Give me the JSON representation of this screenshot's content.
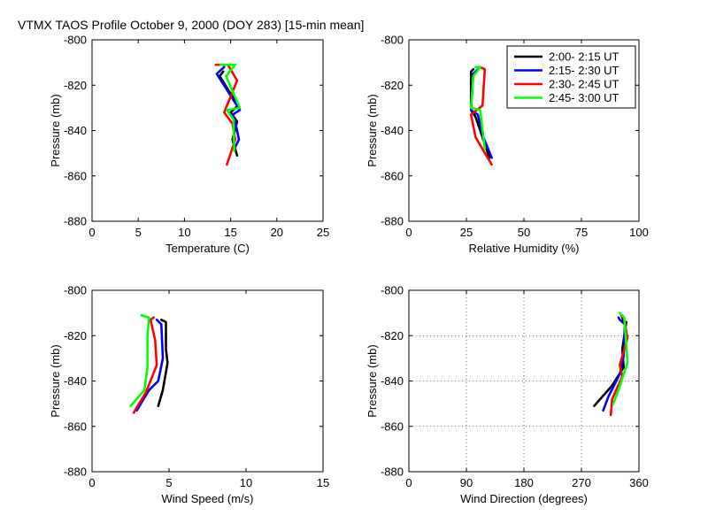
{
  "title": "VTMX TAOS Profile   October 9, 2000 (DOY 283) [15-min mean]",
  "colors": [
    "#000000",
    "#0000ff",
    "#ff0000",
    "#00ff00"
  ],
  "legend": [
    "2:00- 2:15 UT",
    "2:15- 2:30 UT",
    "2:30- 2:45 UT",
    "2:45- 3:00 UT"
  ],
  "chart_data": [
    {
      "type": "line",
      "id": "temperature",
      "xlabel": "Temperature (C)",
      "ylabel": "Pressure (mb)",
      "xlim": [
        0,
        25
      ],
      "ylim": [
        -880,
        -800
      ],
      "xticks": [
        0,
        5,
        10,
        15,
        20,
        25
      ],
      "yticks": [
        -880,
        -860,
        -840,
        -820,
        -800
      ],
      "grid": false,
      "series": [
        {
          "name": "2:00- 2:15 UT",
          "points": [
            [
              14.2,
              -814
            ],
            [
              13.8,
              -816
            ],
            [
              15.8,
              -829
            ],
            [
              15.0,
              -832
            ],
            [
              15.7,
              -836
            ],
            [
              15.2,
              -844
            ],
            [
              15.7,
              -851
            ]
          ]
        },
        {
          "name": "2:15- 2:30 UT",
          "points": [
            [
              14.3,
              -812
            ],
            [
              13.5,
              -815
            ],
            [
              16.0,
              -831
            ],
            [
              15.2,
              -833
            ],
            [
              15.5,
              -836
            ],
            [
              15.9,
              -844
            ],
            [
              15.4,
              -848
            ]
          ]
        },
        {
          "name": "2:30- 2:45 UT",
          "points": [
            [
              13.4,
              -811
            ],
            [
              14.7,
              -811
            ],
            [
              15.7,
              -818
            ],
            [
              14.3,
              -832
            ],
            [
              15.2,
              -837
            ],
            [
              15.5,
              -844
            ],
            [
              14.6,
              -855
            ]
          ]
        },
        {
          "name": "2:45- 3:00 UT",
          "points": [
            [
              13.9,
              -811
            ],
            [
              15.5,
              -811
            ],
            [
              14.5,
              -816
            ],
            [
              16.0,
              -830
            ],
            [
              14.6,
              -831
            ],
            [
              15.3,
              -835
            ],
            [
              15.4,
              -849
            ]
          ]
        }
      ]
    },
    {
      "type": "line",
      "id": "humidity",
      "xlabel": "Relative Humidity (%)",
      "ylabel": "Pressure (mb)",
      "xlim": [
        0,
        100
      ],
      "ylim": [
        -880,
        -800
      ],
      "xticks": [
        0,
        25,
        50,
        75,
        100
      ],
      "yticks": [
        -880,
        -860,
        -840,
        -820,
        -800
      ],
      "grid": false,
      "series": [
        {
          "name": "2:00- 2:15 UT",
          "points": [
            [
              28,
              -813
            ],
            [
              27,
              -814
            ],
            [
              27,
              -831
            ],
            [
              29,
              -834
            ],
            [
              31,
              -840
            ],
            [
              35,
              -852
            ]
          ]
        },
        {
          "name": "2:15- 2:30 UT",
          "points": [
            [
              30,
              -813
            ],
            [
              28,
              -815
            ],
            [
              27,
              -831
            ],
            [
              30,
              -833
            ],
            [
              32,
              -842
            ],
            [
              36,
              -852
            ]
          ]
        },
        {
          "name": "2:30- 2:45 UT",
          "points": [
            [
              31,
              -812
            ],
            [
              33,
              -813
            ],
            [
              32,
              -829
            ],
            [
              27,
              -833
            ],
            [
              29,
              -843
            ],
            [
              36,
              -855
            ]
          ]
        },
        {
          "name": "2:45- 3:00 UT",
          "points": [
            [
              29,
              -812
            ],
            [
              31,
              -812
            ],
            [
              28,
              -816
            ],
            [
              27,
              -830
            ],
            [
              31,
              -831
            ],
            [
              33,
              -848
            ]
          ]
        }
      ]
    },
    {
      "type": "line",
      "id": "wind_speed",
      "xlabel": "Wind Speed (m/s)",
      "ylabel": "Pressure (mb)",
      "xlim": [
        0,
        15
      ],
      "ylim": [
        -880,
        -800
      ],
      "xticks": [
        0,
        5,
        10,
        15
      ],
      "yticks": [
        -880,
        -860,
        -840,
        -820,
        -800
      ],
      "grid": false,
      "series": [
        {
          "name": "2:00- 2:15 UT",
          "points": [
            [
              4.5,
              -813
            ],
            [
              4.8,
              -814
            ],
            [
              4.8,
              -826
            ],
            [
              4.9,
              -832
            ],
            [
              4.6,
              -844
            ],
            [
              4.3,
              -851
            ]
          ]
        },
        {
          "name": "2:15- 2:30 UT",
          "points": [
            [
              4.2,
              -813
            ],
            [
              4.5,
              -815
            ],
            [
              4.6,
              -830
            ],
            [
              4.3,
              -840
            ],
            [
              3.7,
              -844
            ],
            [
              2.9,
              -853
            ]
          ]
        },
        {
          "name": "2:30- 2:45 UT",
          "points": [
            [
              4.0,
              -812
            ],
            [
              3.8,
              -813
            ],
            [
              4.1,
              -822
            ],
            [
              4.2,
              -833
            ],
            [
              3.5,
              -845
            ],
            [
              2.7,
              -854
            ]
          ]
        },
        {
          "name": "2:45- 3:00 UT",
          "points": [
            [
              3.2,
              -811
            ],
            [
              3.7,
              -812
            ],
            [
              3.6,
              -820
            ],
            [
              3.6,
              -834
            ],
            [
              3.4,
              -844
            ],
            [
              2.5,
              -851
            ]
          ]
        }
      ]
    },
    {
      "type": "line",
      "id": "wind_direction",
      "xlabel": "Wind Direction (degrees)",
      "ylabel": "Pressure (mb)",
      "xlim": [
        0,
        360
      ],
      "ylim": [
        -880,
        -800
      ],
      "xticks": [
        0,
        90,
        180,
        270,
        360
      ],
      "yticks": [
        -880,
        -860,
        -840,
        -820,
        -800
      ],
      "grid": true,
      "series": [
        {
          "name": "2:00- 2:15 UT",
          "points": [
            [
              333,
              -811
            ],
            [
              336,
              -814
            ],
            [
              340,
              -814
            ],
            [
              334,
              -826
            ],
            [
              336,
              -834
            ],
            [
              318,
              -842
            ],
            [
              290,
              -851
            ]
          ]
        },
        {
          "name": "2:15- 2:30 UT",
          "points": [
            [
              328,
              -812
            ],
            [
              330,
              -813
            ],
            [
              338,
              -815
            ],
            [
              336,
              -829
            ],
            [
              330,
              -837
            ],
            [
              312,
              -847
            ],
            [
              304,
              -853
            ]
          ]
        },
        {
          "name": "2:30- 2:45 UT",
          "points": [
            [
              332,
              -811
            ],
            [
              336,
              -812
            ],
            [
              342,
              -821
            ],
            [
              330,
              -833
            ],
            [
              334,
              -838
            ],
            [
              318,
              -848
            ],
            [
              316,
              -855
            ]
          ]
        },
        {
          "name": "2:45- 3:00 UT",
          "points": [
            [
              330,
              -810
            ],
            [
              337,
              -812
            ],
            [
              340,
              -824
            ],
            [
              342,
              -832
            ],
            [
              328,
              -844
            ],
            [
              320,
              -850
            ]
          ]
        }
      ]
    }
  ]
}
